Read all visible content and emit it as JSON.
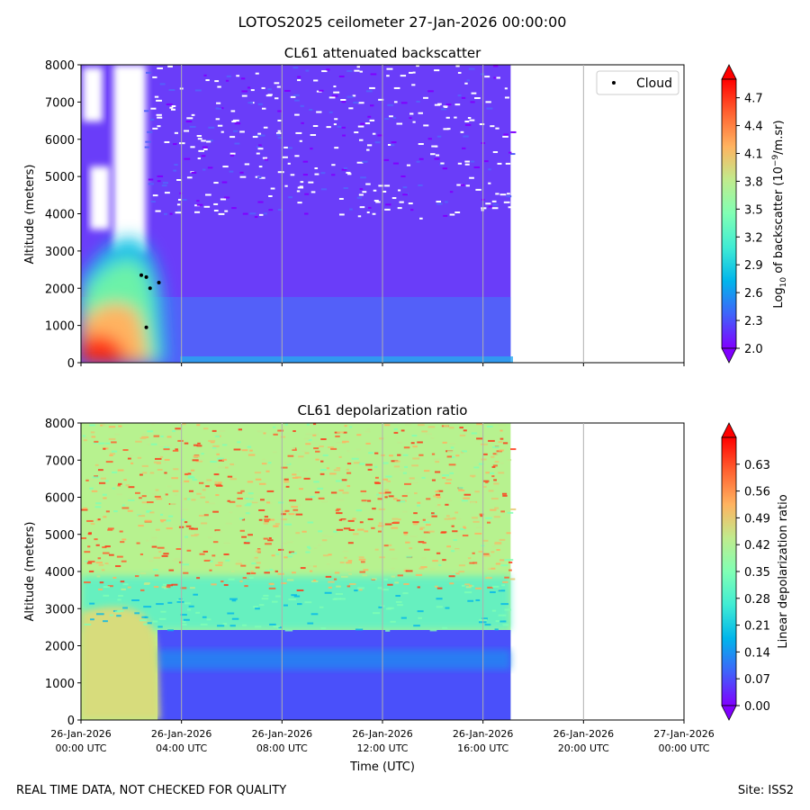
{
  "figure": {
    "suptitle": "LOTOS2025 ceilometer 27-Jan-2026 00:00:00",
    "footer_left": "REAL TIME DATA, NOT CHECKED FOR QUALITY",
    "footer_right": "Site: ISS2",
    "xlabel": "Time (UTC)"
  },
  "colors": {
    "colormap": "rainbow",
    "grid": "#b0b0b0",
    "cloud_marker": "#000000"
  },
  "chart_data": [
    {
      "type": "heatmap",
      "title": "CL61 attenuated backscatter",
      "ylabel": "Altitude (meters)",
      "ylim": [
        0,
        8000
      ],
      "yticks": [
        "0",
        "1000",
        "2000",
        "3000",
        "4000",
        "5000",
        "6000",
        "7000",
        "8000"
      ],
      "x_range_hours": [
        0,
        24
      ],
      "data_end_hour": 17.1,
      "xticks_shown": false,
      "legend": {
        "label": "Cloud",
        "placement": "upper-right"
      },
      "cloud_points": [
        {
          "t_hours": 2.4,
          "alt_m": 2350
        },
        {
          "t_hours": 2.6,
          "alt_m": 2300
        },
        {
          "t_hours": 2.75,
          "alt_m": 2000
        },
        {
          "t_hours": 3.1,
          "alt_m": 2150
        },
        {
          "t_hours": 2.6,
          "alt_m": 950
        }
      ],
      "colorbar": {
        "label_parts": [
          "Log",
          "10",
          " of backscatter (10",
          "−9",
          "/m.sr)"
        ],
        "range": [
          2.0,
          4.9
        ],
        "ticks": [
          "2.0",
          "2.3",
          "2.6",
          "2.9",
          "3.2",
          "3.5",
          "3.8",
          "4.1",
          "4.4",
          "4.7"
        ]
      }
    },
    {
      "type": "heatmap",
      "title": "CL61 depolarization ratio",
      "ylabel": "Altitude (meters)",
      "ylim": [
        0,
        8000
      ],
      "yticks": [
        "0",
        "1000",
        "2000",
        "3000",
        "4000",
        "5000",
        "6000",
        "7000",
        "8000"
      ],
      "x_range_hours": [
        0,
        24
      ],
      "data_end_hour": 17.1,
      "xticks_shown": true,
      "colorbar": {
        "label": "Linear depolarization ratio",
        "range": [
          0.0,
          0.7
        ],
        "ticks": [
          "0.00",
          "0.07",
          "0.14",
          "0.21",
          "0.28",
          "0.35",
          "0.42",
          "0.49",
          "0.56",
          "0.63"
        ]
      }
    }
  ],
  "x_ticks": [
    {
      "hours": 0,
      "date": "26-Jan-2026",
      "time": "00:00 UTC"
    },
    {
      "hours": 4,
      "date": "26-Jan-2026",
      "time": "04:00 UTC"
    },
    {
      "hours": 8,
      "date": "26-Jan-2026",
      "time": "08:00 UTC"
    },
    {
      "hours": 12,
      "date": "26-Jan-2026",
      "time": "12:00 UTC"
    },
    {
      "hours": 16,
      "date": "26-Jan-2026",
      "time": "16:00 UTC"
    },
    {
      "hours": 20,
      "date": "26-Jan-2026",
      "time": "20:00 UTC"
    },
    {
      "hours": 24,
      "date": "27-Jan-2026",
      "time": "00:00 UTC"
    }
  ]
}
